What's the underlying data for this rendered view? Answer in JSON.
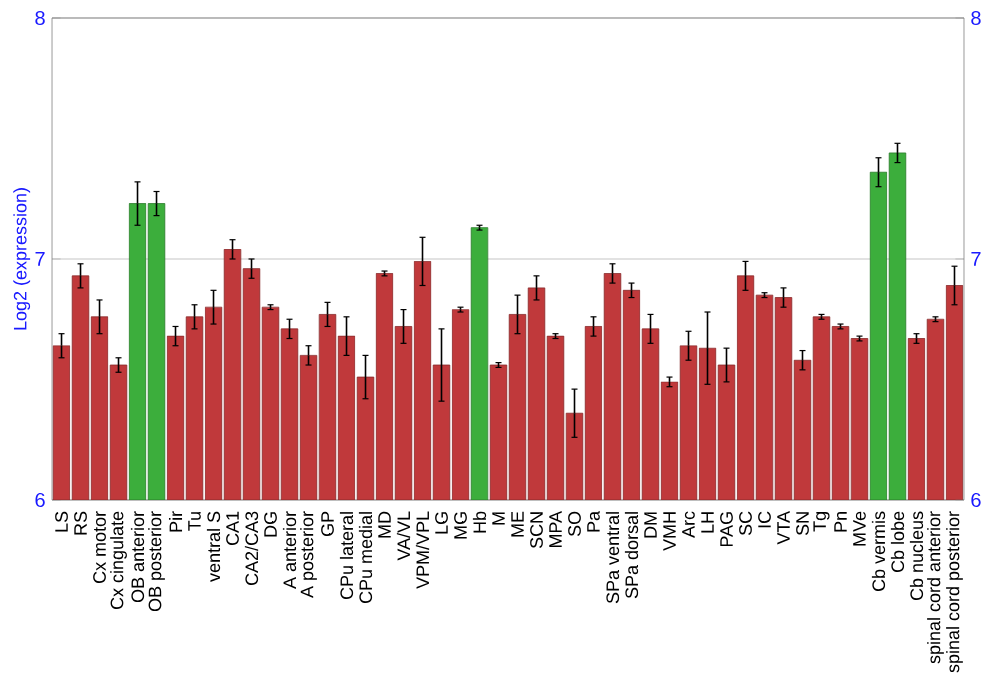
{
  "chart_data": {
    "type": "bar",
    "ylabel": "Log2 (expression)",
    "categories": [
      "LS",
      "RS",
      "Cx motor",
      "Cx cingulate",
      "OB anterior",
      "OB posterior",
      "Pir",
      "Tu",
      "ventral S",
      "CA1",
      "CA2/CA3",
      "DG",
      "A anterior",
      "A posterior",
      "GP",
      "CPu lateral",
      "CPu medial",
      "MD",
      "VA/VL",
      "VPM/VPL",
      "LG",
      "MG",
      "Hb",
      "M",
      "ME",
      "SCN",
      "MPA",
      "SO",
      "Pa",
      "SPa ventral",
      "SPa dorsal",
      "DM",
      "VMH",
      "Arc",
      "LH",
      "PAG",
      "SC",
      "IC",
      "VTA",
      "SN",
      "Tg",
      "Pn",
      "MVe",
      "Cb vermis",
      "Cb lobe",
      "Cb nucleus",
      "spinal cord anterior",
      "spinal cord posterior"
    ],
    "values": [
      6.64,
      6.93,
      6.76,
      6.56,
      7.23,
      7.23,
      6.68,
      6.76,
      6.8,
      7.04,
      6.96,
      6.8,
      6.71,
      6.6,
      6.77,
      6.68,
      6.51,
      6.94,
      6.72,
      6.99,
      6.56,
      6.79,
      7.13,
      6.56,
      6.77,
      6.88,
      6.68,
      6.36,
      6.72,
      6.94,
      6.87,
      6.71,
      6.49,
      6.64,
      6.63,
      6.56,
      6.93,
      6.85,
      6.84,
      6.58,
      6.76,
      6.72,
      6.67,
      7.36,
      7.44,
      6.67,
      6.75,
      6.89
    ],
    "errors": [
      0.05,
      0.05,
      0.07,
      0.03,
      0.09,
      0.05,
      0.04,
      0.05,
      0.07,
      0.04,
      0.04,
      0.01,
      0.04,
      0.04,
      0.05,
      0.08,
      0.09,
      0.01,
      0.07,
      0.1,
      0.15,
      0.01,
      0.01,
      0.01,
      0.08,
      0.05,
      0.01,
      0.1,
      0.04,
      0.04,
      0.03,
      0.06,
      0.02,
      0.06,
      0.15,
      0.07,
      0.06,
      0.01,
      0.04,
      0.04,
      0.01,
      0.01,
      0.01,
      0.06,
      0.04,
      0.02,
      0.01,
      0.08
    ],
    "colors": [
      "#c0393b",
      "#c0393b",
      "#c0393b",
      "#c0393b",
      "#3cae3c",
      "#3cae3c",
      "#c0393b",
      "#c0393b",
      "#c0393b",
      "#c0393b",
      "#c0393b",
      "#c0393b",
      "#c0393b",
      "#c0393b",
      "#c0393b",
      "#c0393b",
      "#c0393b",
      "#c0393b",
      "#c0393b",
      "#c0393b",
      "#c0393b",
      "#c0393b",
      "#3cae3c",
      "#c0393b",
      "#c0393b",
      "#c0393b",
      "#c0393b",
      "#c0393b",
      "#c0393b",
      "#c0393b",
      "#c0393b",
      "#c0393b",
      "#c0393b",
      "#c0393b",
      "#c0393b",
      "#c0393b",
      "#c0393b",
      "#c0393b",
      "#c0393b",
      "#c0393b",
      "#c0393b",
      "#c0393b",
      "#c0393b",
      "#3cae3c",
      "#3cae3c",
      "#c0393b",
      "#c0393b",
      "#c0393b"
    ],
    "ylim": [
      6,
      8
    ],
    "yticks": [
      6,
      7,
      8
    ],
    "y2lim": [
      6,
      8
    ],
    "y2ticks": [
      6,
      7,
      8
    ],
    "grid": "y"
  }
}
